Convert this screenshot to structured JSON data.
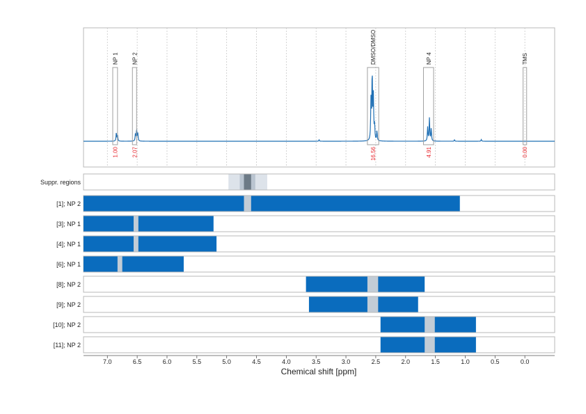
{
  "chart_data": {
    "type": "area",
    "xlabel": "Chemical shift [ppm]",
    "x_reversed": true,
    "xlim": [
      7.4,
      -0.5
    ],
    "x_ticks": [
      {
        "value": 7.0,
        "label": "7.0"
      },
      {
        "value": 6.5,
        "label": "6.5"
      },
      {
        "value": 6.0,
        "label": "6.0"
      },
      {
        "value": 5.5,
        "label": "5.5"
      },
      {
        "value": 5.0,
        "label": "5.0"
      },
      {
        "value": 4.5,
        "label": "4.5"
      },
      {
        "value": 4.0,
        "label": "4.0"
      },
      {
        "value": 3.5,
        "label": "3.5"
      },
      {
        "value": 3.0,
        "label": "3.0"
      },
      {
        "value": 2.5,
        "label": "2.5"
      },
      {
        "value": 2.0,
        "label": "2.0"
      },
      {
        "value": 1.5,
        "label": "1.5"
      },
      {
        "value": 1.0,
        "label": "1.0"
      },
      {
        "value": 0.5,
        "label": "0.5"
      },
      {
        "value": 0.0,
        "label": "0.0"
      }
    ],
    "spectrum": {
      "colors": {
        "line": "#1f6fb4",
        "integral_label": "#e8262d",
        "frame": "#a0a0a0"
      },
      "peaks": [
        {
          "x": 6.85,
          "height": 0.12
        },
        {
          "x": 6.83,
          "height": 0.09
        },
        {
          "x": 6.53,
          "height": 0.1
        },
        {
          "x": 6.51,
          "height": 0.17
        },
        {
          "x": 6.49,
          "height": 0.11
        },
        {
          "x": 2.58,
          "height": 0.58
        },
        {
          "x": 2.56,
          "height": 1.0
        },
        {
          "x": 2.54,
          "height": 0.62
        },
        {
          "x": 2.52,
          "height": 0.22
        },
        {
          "x": 2.48,
          "height": 0.14
        },
        {
          "x": 1.63,
          "height": 0.2
        },
        {
          "x": 1.6,
          "height": 0.33
        },
        {
          "x": 1.57,
          "height": 0.18
        },
        {
          "x": 3.45,
          "height": 0.02
        },
        {
          "x": 1.18,
          "height": 0.02
        },
        {
          "x": 0.73,
          "height": 0.025
        }
      ],
      "annotations": [
        {
          "label": "NP 1",
          "x_left": 6.91,
          "x_right": 6.83,
          "box_top": 0.93,
          "integral": "1.00"
        },
        {
          "label": "NP 2",
          "x_left": 6.58,
          "x_right": 6.51,
          "box_top": 0.93,
          "integral": "2.07"
        },
        {
          "label": "DMSO/DMSO",
          "x_left": 2.64,
          "x_right": 2.45,
          "box_top": 0.93,
          "integral": "16.56"
        },
        {
          "label": "NP 4",
          "x_left": 1.7,
          "x_right": 1.53,
          "box_top": 0.93,
          "integral": "4.91"
        },
        {
          "label": "TMS",
          "x_left": 0.03,
          "x_right": -0.03,
          "box_top": 0.93,
          "integral": "0.00"
        }
      ]
    },
    "suppression": {
      "label": "Suppr. regions",
      "regions": [
        {
          "from": 4.97,
          "to": 4.32,
          "shade": "#dde3ea"
        },
        {
          "from": 4.78,
          "to": 4.52,
          "shade": "#b9c4d0"
        },
        {
          "from": 4.71,
          "to": 4.59,
          "shade": "#6c7a86"
        }
      ]
    },
    "lanes": {
      "bar_color": "#0a6cbe",
      "gap_color": "#c2ccd6",
      "rows": [
        {
          "label": "[1]; NP 2",
          "from": 7.4,
          "to": 1.09,
          "gap": [
            4.71,
            4.59
          ]
        },
        {
          "label": "[3]; NP 1",
          "from": 7.4,
          "to": 5.22,
          "gap": [
            6.56,
            6.48
          ]
        },
        {
          "label": "[4]; NP 1",
          "from": 7.4,
          "to": 5.17,
          "gap": [
            6.56,
            6.48
          ]
        },
        {
          "label": "[6]; NP 1",
          "from": 7.4,
          "to": 5.72,
          "gap": [
            6.83,
            6.75
          ]
        },
        {
          "label": "[8]; NP 2",
          "from": 3.67,
          "to": 1.68,
          "gap": [
            2.64,
            2.46
          ]
        },
        {
          "label": "[9]; NP 2",
          "from": 3.62,
          "to": 1.79,
          "gap": [
            2.64,
            2.46
          ]
        },
        {
          "label": "[10]; NP 2",
          "from": 2.42,
          "to": 0.82,
          "gap": [
            1.68,
            1.51
          ]
        },
        {
          "label": "[11]; NP 2",
          "from": 2.42,
          "to": 0.82,
          "gap": [
            1.68,
            1.51
          ]
        }
      ]
    }
  }
}
